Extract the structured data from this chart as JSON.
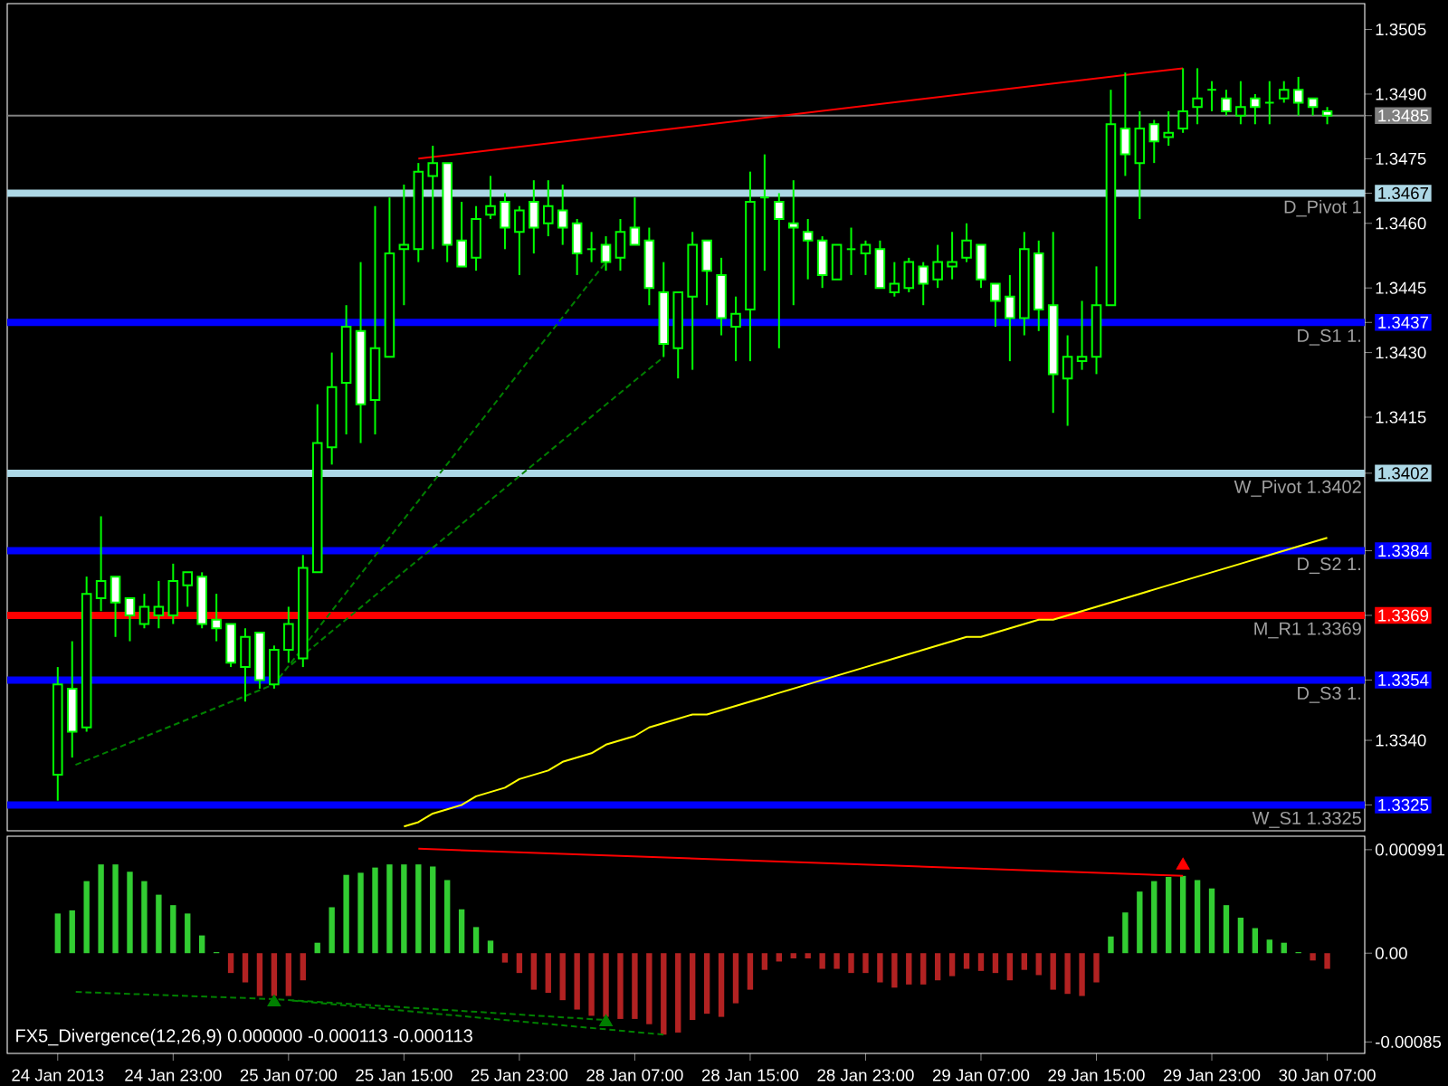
{
  "chart_data": [
    {
      "type": "candlestick",
      "color": "#00ff00",
      "tick_labels": "y",
      "categories": [
        null,
        null,
        null,
        null,
        null,
        null,
        null,
        null,
        null,
        null,
        null,
        null,
        null,
        null,
        null,
        null,
        null,
        null,
        null,
        null,
        null,
        null,
        null,
        null,
        null,
        null,
        null,
        null,
        null,
        null,
        null,
        null,
        null,
        null,
        null,
        null,
        null,
        null,
        null,
        null,
        null,
        null,
        null,
        null,
        null,
        null,
        null,
        null,
        null,
        null,
        null,
        null,
        null,
        null,
        null,
        null,
        null,
        null,
        null,
        null,
        null,
        null,
        null,
        null,
        null,
        null,
        null,
        null,
        null,
        null,
        null,
        null,
        null,
        null,
        null,
        null,
        null,
        null,
        null,
        null,
        null,
        null,
        null,
        null,
        null,
        null,
        null,
        null,
        null
      ],
      "ohlc": [
        [
          1.3332,
          1.3357,
          1.3326,
          1.3353
        ],
        [
          1.3352,
          1.3363,
          1.3336,
          1.3342
        ],
        [
          1.3343,
          1.3378,
          1.3342,
          1.3374
        ],
        [
          1.3373,
          1.3392,
          1.337,
          1.3377
        ],
        [
          1.3378,
          1.3378,
          1.3364,
          1.3372
        ],
        [
          1.3373,
          1.3373,
          1.3363,
          1.3369
        ],
        [
          1.3367,
          1.3374,
          1.3366,
          1.3371
        ],
        [
          1.3369,
          1.3377,
          1.3366,
          1.3371
        ],
        [
          1.3369,
          1.3381,
          1.3367,
          1.3377
        ],
        [
          1.3376,
          1.3379,
          1.3371,
          1.3379
        ],
        [
          1.3378,
          1.3379,
          1.3366,
          1.3367
        ],
        [
          1.3368,
          1.3374,
          1.3363,
          1.3366
        ],
        [
          1.3367,
          1.3367,
          1.3357,
          1.3358
        ],
        [
          1.3357,
          1.3366,
          1.3349,
          1.3364
        ],
        [
          1.3365,
          1.3365,
          1.3352,
          1.3354
        ],
        [
          1.3353,
          1.3362,
          1.3352,
          1.3361
        ],
        [
          1.3361,
          1.3371,
          1.3358,
          1.3367
        ],
        [
          1.3359,
          1.3383,
          1.3357,
          1.338
        ],
        [
          1.3379,
          1.3418,
          1.3379,
          1.3409
        ],
        [
          1.3408,
          1.343,
          1.3404,
          1.3422
        ],
        [
          1.3423,
          1.3441,
          1.3411,
          1.3436
        ],
        [
          1.3435,
          1.3451,
          1.3409,
          1.3418
        ],
        [
          1.3419,
          1.3464,
          1.3411,
          1.3431
        ],
        [
          1.3429,
          1.3466,
          1.3429,
          1.3453
        ],
        [
          1.3454,
          1.3469,
          1.3441,
          1.3455
        ],
        [
          1.3454,
          1.3474,
          1.3451,
          1.3472
        ],
        [
          1.3471,
          1.3478,
          1.3454,
          1.3474
        ],
        [
          1.3474,
          1.3474,
          1.3451,
          1.3455
        ],
        [
          1.3456,
          1.3465,
          1.345,
          1.345
        ],
        [
          1.3452,
          1.3464,
          1.3449,
          1.3461
        ],
        [
          1.3462,
          1.3471,
          1.3461,
          1.3464
        ],
        [
          1.3465,
          1.3467,
          1.3454,
          1.3459
        ],
        [
          1.3458,
          1.3464,
          1.3448,
          1.3463
        ],
        [
          1.3465,
          1.347,
          1.3453,
          1.3459
        ],
        [
          1.346,
          1.347,
          1.3457,
          1.3464
        ],
        [
          1.3463,
          1.3469,
          1.3455,
          1.3459
        ],
        [
          1.346,
          1.3461,
          1.3448,
          1.3453
        ],
        [
          1.3454,
          1.3458,
          1.3451,
          1.3454
        ],
        [
          1.3455,
          1.3457,
          1.3449,
          1.3451
        ],
        [
          1.3452,
          1.3461,
          1.3449,
          1.3458
        ],
        [
          1.3459,
          1.3466,
          1.3455,
          1.3455
        ],
        [
          1.3456,
          1.3459,
          1.3441,
          1.3445
        ],
        [
          1.3444,
          1.3451,
          1.3429,
          1.3432
        ],
        [
          1.3431,
          1.3444,
          1.3424,
          1.3444
        ],
        [
          1.3443,
          1.3458,
          1.3426,
          1.3455
        ],
        [
          1.3456,
          1.3456,
          1.3441,
          1.3449
        ],
        [
          1.3448,
          1.3452,
          1.3434,
          1.3438
        ],
        [
          1.3436,
          1.3443,
          1.3428,
          1.3439
        ],
        [
          1.344,
          1.3472,
          1.3428,
          1.3465
        ],
        [
          1.3466,
          1.3476,
          1.3449,
          1.3466
        ],
        [
          1.3465,
          1.3467,
          1.3431,
          1.3461
        ],
        [
          1.346,
          1.347,
          1.3441,
          1.3459
        ],
        [
          1.3458,
          1.3461,
          1.3447,
          1.3456
        ],
        [
          1.3456,
          1.3457,
          1.3445,
          1.3448
        ],
        [
          1.3447,
          1.3455,
          1.3447,
          1.3455
        ],
        [
          1.3454,
          1.3459,
          1.3448,
          1.3454
        ],
        [
          1.3453,
          1.3456,
          1.3448,
          1.3455
        ],
        [
          1.3454,
          1.3456,
          1.3445,
          1.3445
        ],
        [
          1.3444,
          1.3451,
          1.3443,
          1.3446
        ],
        [
          1.3445,
          1.3452,
          1.3444,
          1.3451
        ],
        [
          1.345,
          1.3451,
          1.3441,
          1.3446
        ],
        [
          1.3447,
          1.3455,
          1.3445,
          1.3451
        ],
        [
          1.345,
          1.3458,
          1.3447,
          1.3451
        ],
        [
          1.3452,
          1.346,
          1.3451,
          1.3456
        ],
        [
          1.3455,
          1.3455,
          1.3445,
          1.3447
        ],
        [
          1.3446,
          1.3446,
          1.3436,
          1.3442
        ],
        [
          1.3443,
          1.3448,
          1.3428,
          1.3438
        ],
        [
          1.3438,
          1.3458,
          1.3434,
          1.3454
        ],
        [
          1.3453,
          1.3456,
          1.3435,
          1.344
        ],
        [
          1.3441,
          1.3458,
          1.3416,
          1.3425
        ],
        [
          1.3424,
          1.3434,
          1.3413,
          1.3429
        ],
        [
          1.3428,
          1.3442,
          1.3426,
          1.3429
        ],
        [
          1.3429,
          1.345,
          1.3425,
          1.3441
        ],
        [
          1.3441,
          1.3491,
          1.3441,
          1.3483
        ],
        [
          1.3482,
          1.3495,
          1.3471,
          1.3476
        ],
        [
          1.3474,
          1.3486,
          1.3461,
          1.3482
        ],
        [
          1.3483,
          1.3484,
          1.3474,
          1.3479
        ],
        [
          1.348,
          1.3486,
          1.3478,
          1.3481
        ],
        [
          1.3482,
          1.3496,
          1.3481,
          1.3486
        ],
        [
          1.3487,
          1.3496,
          1.3483,
          1.3489
        ],
        [
          1.3491,
          1.3493,
          1.3486,
          1.3491
        ],
        [
          1.3489,
          1.3491,
          1.3485,
          1.3486
        ],
        [
          1.3485,
          1.3493,
          1.3483,
          1.3487
        ],
        [
          1.3489,
          1.349,
          1.3483,
          1.3487
        ],
        [
          1.3488,
          1.3493,
          1.3483,
          1.3488
        ],
        [
          1.3489,
          1.3493,
          1.3488,
          1.3491
        ],
        [
          1.3491,
          1.3494,
          1.3485,
          1.3488
        ],
        [
          1.3489,
          1.3489,
          1.3485,
          1.3487
        ],
        [
          1.3486,
          1.3487,
          1.3483,
          1.3485
        ]
      ],
      "series": [
        {
          "type": "line",
          "color": "#ffff00",
          "values": [
            null,
            null,
            null,
            null,
            null,
            null,
            null,
            null,
            null,
            null,
            null,
            null,
            null,
            null,
            null,
            null,
            null,
            null,
            null,
            null,
            null,
            null,
            null,
            null,
            1.332,
            1.3321,
            1.3323,
            1.3324,
            1.3325,
            1.3327,
            1.3328,
            1.3329,
            1.3331,
            1.3332,
            1.3333,
            1.3335,
            1.3336,
            1.3337,
            1.3339,
            1.334,
            1.3341,
            1.3343,
            1.3344,
            1.3345,
            1.3346,
            1.3346,
            1.3347,
            1.3348,
            1.3349,
            1.335,
            1.3351,
            1.3352,
            1.3353,
            1.3354,
            1.3355,
            1.3356,
            1.3357,
            1.3358,
            1.3359,
            1.336,
            1.3361,
            1.3362,
            1.3363,
            1.3364,
            1.3364,
            1.3365,
            1.3366,
            1.3367,
            1.3368,
            1.3368,
            1.3369,
            1.337,
            1.3371,
            1.3372,
            1.3373,
            1.3374,
            1.3375,
            1.3376,
            1.3377,
            1.3378,
            1.3379,
            1.338,
            1.3381,
            1.3382,
            1.3383,
            1.3384,
            1.3385,
            1.3386,
            1.3387
          ]
        },
        {
          "type": "line",
          "color": "#ff0000",
          "values": [
            null,
            null,
            null,
            null,
            null,
            null,
            null,
            null,
            null,
            null,
            null,
            null,
            null,
            null,
            null,
            null,
            null,
            null,
            null,
            null,
            null,
            null,
            null,
            null,
            null,
            1.3475,
            null,
            null,
            null,
            null,
            null,
            null,
            null,
            null,
            null,
            null,
            null,
            null,
            null,
            null,
            null,
            null,
            null,
            null,
            null,
            null,
            null,
            null,
            null,
            null,
            null,
            null,
            null,
            null,
            null,
            null,
            null,
            null,
            null,
            null,
            null,
            null,
            null,
            null,
            null,
            null,
            null,
            null,
            null,
            null,
            null,
            null,
            null,
            null,
            null,
            null,
            null,
            null,
            1.3496,
            null,
            null,
            null,
            null,
            null,
            null,
            null,
            null,
            null,
            null
          ]
        },
        {
          "type": "line",
          "color": "#008000",
          "line_style": "dashed",
          "values": [
            null,
            1.3334,
            null,
            null,
            null,
            null,
            null,
            null,
            null,
            null,
            null,
            null,
            null,
            null,
            null,
            1.3353,
            null,
            null,
            null,
            null,
            null,
            null,
            null,
            null,
            null,
            null,
            null,
            null,
            null,
            null,
            null,
            null,
            null,
            null,
            null,
            null,
            null,
            null,
            1.3451,
            null,
            null,
            null,
            null,
            null,
            null,
            null,
            null,
            null,
            null,
            null,
            null,
            null,
            null,
            null,
            null,
            null,
            null,
            null,
            null,
            null,
            null,
            null,
            null,
            null,
            null,
            null,
            null,
            null,
            null,
            null,
            null,
            null,
            null,
            null,
            null,
            null,
            null,
            null,
            null,
            null,
            null,
            null,
            null,
            null,
            null,
            null,
            null,
            null,
            null
          ]
        },
        {
          "type": "line",
          "color": "#008000",
          "line_style": "dashed",
          "values": [
            null,
            null,
            null,
            null,
            null,
            null,
            null,
            null,
            null,
            null,
            null,
            null,
            null,
            null,
            null,
            null,
            1.3357,
            null,
            null,
            null,
            null,
            null,
            null,
            null,
            null,
            null,
            null,
            null,
            null,
            null,
            null,
            null,
            null,
            null,
            null,
            null,
            null,
            null,
            null,
            null,
            null,
            null,
            1.3429,
            null,
            null,
            null,
            null,
            null,
            null,
            null,
            null,
            null,
            null,
            null,
            null,
            null,
            null,
            null,
            null,
            null,
            null,
            null,
            null,
            null,
            null,
            null,
            null,
            null,
            null,
            null,
            null,
            null,
            null,
            null,
            null,
            null,
            null,
            null,
            null,
            null,
            null,
            null,
            null,
            null,
            null,
            null,
            null,
            null,
            null
          ]
        }
      ],
      "ylim": [
        1.3319,
        1.3511
      ],
      "yticks": [
        1.3505,
        {
          "value": 1.349,
          "label": "1.3490"
        },
        1.3485,
        1.3475,
        1.3467,
        {
          "value": 1.346,
          "label": "1.3460"
        },
        1.3445,
        1.3437,
        {
          "value": 1.343,
          "label": "1.3430"
        },
        1.3415,
        1.3402,
        1.3384,
        1.3369,
        1.3354,
        {
          "value": 1.334,
          "label": "1.3340"
        },
        1.3325
      ],
      "ref_lines": [
        {
          "axis": "y",
          "value": 1.3485,
          "color": "#808080"
        },
        {
          "axis": "y",
          "value": 1.3467,
          "label": "D_Pivot 1",
          "color": "#add8e6"
        },
        {
          "axis": "y",
          "value": 1.3437,
          "label": "D_S1 1.",
          "color": "#0000ff"
        },
        {
          "axis": "y",
          "value": 1.3402,
          "label": "W_Pivot 1.3402",
          "color": "#add8e6"
        },
        {
          "axis": "y",
          "value": 1.3384,
          "label": "D_S2 1.",
          "color": "#0000ff"
        },
        {
          "axis": "y",
          "value": 1.3369,
          "label": "M_R1 1.3369",
          "color": "#ff0000"
        },
        {
          "axis": "y",
          "value": 1.3354,
          "label": "D_S3 1.",
          "color": "#0000ff"
        },
        {
          "axis": "y",
          "value": 1.3325,
          "label": "W_S1 1.3325",
          "color": "#0000ff"
        }
      ]
    },
    {
      "type": "bar",
      "title": "FX5_Divergence(12,26,9) 0.000000 -0.000113 -0.000113",
      "categories": [
        "24 Jan 2013",
        null,
        null,
        null,
        null,
        null,
        null,
        null,
        "24 Jan 23:00",
        null,
        null,
        null,
        null,
        null,
        null,
        null,
        "25 Jan 07:00",
        null,
        null,
        null,
        null,
        null,
        null,
        null,
        "25 Jan 15:00",
        null,
        null,
        null,
        null,
        null,
        null,
        null,
        "25 Jan 23:00",
        null,
        null,
        null,
        null,
        null,
        null,
        null,
        "28 Jan 07:00",
        null,
        null,
        null,
        null,
        null,
        null,
        null,
        "28 Jan 15:00",
        null,
        null,
        null,
        null,
        null,
        null,
        null,
        "28 Jan 23:00",
        null,
        null,
        null,
        null,
        null,
        null,
        null,
        "29 Jan 07:00",
        null,
        null,
        null,
        null,
        null,
        null,
        null,
        "29 Jan 15:00",
        null,
        null,
        null,
        null,
        null,
        null,
        null,
        "29 Jan 23:00",
        null,
        null,
        null,
        null,
        null,
        null,
        null,
        "30 Jan 07:00"
      ],
      "series": [
        {
          "type": "bar",
          "values": [
            0.00038,
            0.00041,
            0.00069,
            0.00085,
            0.00085,
            0.00078,
            0.00069,
            0.00056,
            0.00046,
            0.00038,
            0.00017,
            1e-05,
            -0.00019,
            -0.00028,
            -0.00041,
            -0.00041,
            -0.00041,
            -0.00026,
            0.0001,
            0.00044,
            0.00075,
            0.00077,
            0.00082,
            0.00085,
            0.00085,
            0.00085,
            0.00083,
            0.0007,
            0.00042,
            0.00025,
            0.00012,
            -9e-05,
            -0.00019,
            -0.00035,
            -0.00038,
            -0.00045,
            -0.00054,
            -0.0006,
            -0.00061,
            -0.00063,
            -0.00063,
            -0.00068,
            -0.00078,
            -0.00076,
            -0.00064,
            -0.00058,
            -0.00061,
            -0.00048,
            -0.00035,
            -0.00016,
            -8e-05,
            -5e-05,
            -5e-05,
            -0.00015,
            -0.00015,
            -0.00019,
            -0.00019,
            -0.00028,
            -0.00033,
            -0.0003,
            -0.0003,
            -0.00026,
            -0.00022,
            -0.00015,
            -0.00017,
            -0.00019,
            -0.00026,
            -0.00016,
            -0.00021,
            -0.00035,
            -0.00039,
            -0.00041,
            -0.00028,
            0.00016,
            0.00039,
            0.00059,
            0.00069,
            0.00073,
            0.00074,
            0.0007,
            0.00062,
            0.00046,
            0.00034,
            0.00024,
            0.00013,
            0.0001,
            1e-05,
            -7e-05,
            -0.00015
          ],
          "colors": [
            "#32cd32",
            "#32cd32",
            "#32cd32",
            "#32cd32",
            "#32cd32",
            "#32cd32",
            "#32cd32",
            "#32cd32",
            "#32cd32",
            "#32cd32",
            "#32cd32",
            "#32cd32",
            "#b22222",
            "#b22222",
            "#b22222",
            "#b22222",
            "#b22222",
            "#b22222",
            "#32cd32",
            "#32cd32",
            "#32cd32",
            "#32cd32",
            "#32cd32",
            "#32cd32",
            "#32cd32",
            "#32cd32",
            "#32cd32",
            "#32cd32",
            "#32cd32",
            "#32cd32",
            "#32cd32",
            "#b22222",
            "#b22222",
            "#b22222",
            "#b22222",
            "#b22222",
            "#b22222",
            "#b22222",
            "#b22222",
            "#b22222",
            "#b22222",
            "#b22222",
            "#b22222",
            "#b22222",
            "#b22222",
            "#b22222",
            "#b22222",
            "#b22222",
            "#b22222",
            "#b22222",
            "#b22222",
            "#b22222",
            "#b22222",
            "#b22222",
            "#b22222",
            "#b22222",
            "#b22222",
            "#b22222",
            "#b22222",
            "#b22222",
            "#b22222",
            "#b22222",
            "#b22222",
            "#b22222",
            "#b22222",
            "#b22222",
            "#b22222",
            "#b22222",
            "#b22222",
            "#b22222",
            "#b22222",
            "#b22222",
            "#b22222",
            "#32cd32",
            "#32cd32",
            "#32cd32",
            "#32cd32",
            "#32cd32",
            "#32cd32",
            "#32cd32",
            "#32cd32",
            "#32cd32",
            "#32cd32",
            "#32cd32",
            "#32cd32",
            "#32cd32",
            "#32cd32",
            "#b22222",
            "#b22222"
          ]
        },
        {
          "type": "line",
          "color": "#ff0000",
          "values": [
            null,
            null,
            null,
            null,
            null,
            null,
            null,
            null,
            null,
            null,
            null,
            null,
            null,
            null,
            null,
            null,
            null,
            null,
            null,
            null,
            null,
            null,
            null,
            null,
            null,
            0.001,
            null,
            null,
            null,
            null,
            null,
            null,
            null,
            null,
            null,
            null,
            null,
            null,
            null,
            null,
            null,
            null,
            null,
            null,
            null,
            null,
            null,
            null,
            null,
            null,
            null,
            null,
            null,
            null,
            null,
            null,
            null,
            null,
            null,
            null,
            null,
            null,
            null,
            null,
            null,
            null,
            null,
            null,
            null,
            null,
            null,
            null,
            null,
            null,
            null,
            null,
            null,
            null,
            0.00074,
            null,
            null,
            null,
            null,
            null,
            null,
            null,
            null,
            null,
            null
          ]
        },
        {
          "type": "line",
          "color": "#008000",
          "line_style": "dashed",
          "values": [
            null,
            -0.00037,
            null,
            null,
            null,
            null,
            null,
            null,
            null,
            null,
            null,
            null,
            null,
            null,
            null,
            -0.00044,
            null,
            null,
            null,
            null,
            null,
            null,
            null,
            null,
            null,
            null,
            null,
            null,
            null,
            null,
            null,
            null,
            null,
            null,
            null,
            null,
            null,
            null,
            -0.00064,
            null,
            null,
            null,
            null,
            null,
            null,
            null,
            null,
            null,
            null,
            null,
            null,
            null,
            null,
            null,
            null,
            null,
            null,
            null,
            null,
            null,
            null,
            null,
            null,
            null,
            null,
            null,
            null,
            null,
            null,
            null,
            null,
            null,
            null,
            null,
            null,
            null,
            null,
            null,
            null,
            null,
            null,
            null,
            null,
            null,
            null,
            null,
            null,
            null,
            null
          ]
        },
        {
          "type": "line",
          "color": "#008000",
          "line_style": "dashed",
          "values": [
            null,
            null,
            null,
            null,
            null,
            null,
            null,
            null,
            null,
            null,
            null,
            null,
            null,
            null,
            null,
            null,
            -0.00045,
            null,
            null,
            null,
            null,
            null,
            null,
            null,
            null,
            null,
            null,
            null,
            null,
            null,
            null,
            null,
            null,
            null,
            null,
            null,
            null,
            null,
            null,
            null,
            null,
            null,
            -0.00078,
            null,
            null,
            null,
            null,
            null,
            null,
            null,
            null,
            null,
            null,
            null,
            null,
            null,
            null,
            null,
            null,
            null,
            null,
            null,
            null,
            null,
            null,
            null,
            null,
            null,
            null,
            null,
            null,
            null,
            null,
            null,
            null,
            null,
            null,
            null,
            null,
            null,
            null,
            null,
            null,
            null,
            null,
            null,
            null,
            null,
            null
          ]
        },
        {
          "type": "scatter",
          "color": "#008000",
          "marker": "triangle",
          "values": [
            null,
            null,
            null,
            null,
            null,
            null,
            null,
            null,
            null,
            null,
            null,
            null,
            null,
            null,
            null,
            -0.00047,
            null,
            null,
            null,
            null,
            null,
            null,
            null,
            null,
            null,
            null,
            null,
            null,
            null,
            null,
            null,
            null,
            null,
            null,
            null,
            null,
            null,
            null,
            -0.00066,
            null,
            null,
            null,
            null,
            null,
            null,
            null,
            null,
            null,
            null,
            null,
            null,
            null,
            null,
            null,
            null,
            null,
            null,
            null,
            null,
            null,
            null,
            null,
            null,
            null,
            null,
            null,
            null,
            null,
            null,
            null,
            null,
            null,
            null,
            null,
            null,
            null,
            null,
            null,
            null,
            null,
            null,
            null,
            null,
            null,
            null,
            null,
            null,
            null,
            null
          ]
        },
        {
          "type": "scatter",
          "color": "#ff0000",
          "marker": "triangle",
          "values": [
            null,
            null,
            null,
            null,
            null,
            null,
            null,
            null,
            null,
            null,
            null,
            null,
            null,
            null,
            null,
            null,
            null,
            null,
            null,
            null,
            null,
            null,
            null,
            null,
            null,
            null,
            null,
            null,
            null,
            null,
            null,
            null,
            null,
            null,
            null,
            null,
            null,
            null,
            null,
            null,
            null,
            null,
            null,
            null,
            null,
            null,
            null,
            null,
            null,
            null,
            null,
            null,
            null,
            null,
            null,
            null,
            null,
            null,
            null,
            null,
            null,
            null,
            null,
            null,
            null,
            null,
            null,
            null,
            null,
            null,
            null,
            null,
            null,
            null,
            null,
            null,
            null,
            null,
            0.00084,
            null,
            null,
            null,
            null,
            null,
            null,
            null,
            null,
            null,
            null
          ]
        }
      ],
      "ylim": [
        -0.00096,
        0.00112
      ],
      "yticks": [
        0.000991,
        {
          "value": 0,
          "label": "0.00"
        },
        -0.00085
      ]
    }
  ]
}
